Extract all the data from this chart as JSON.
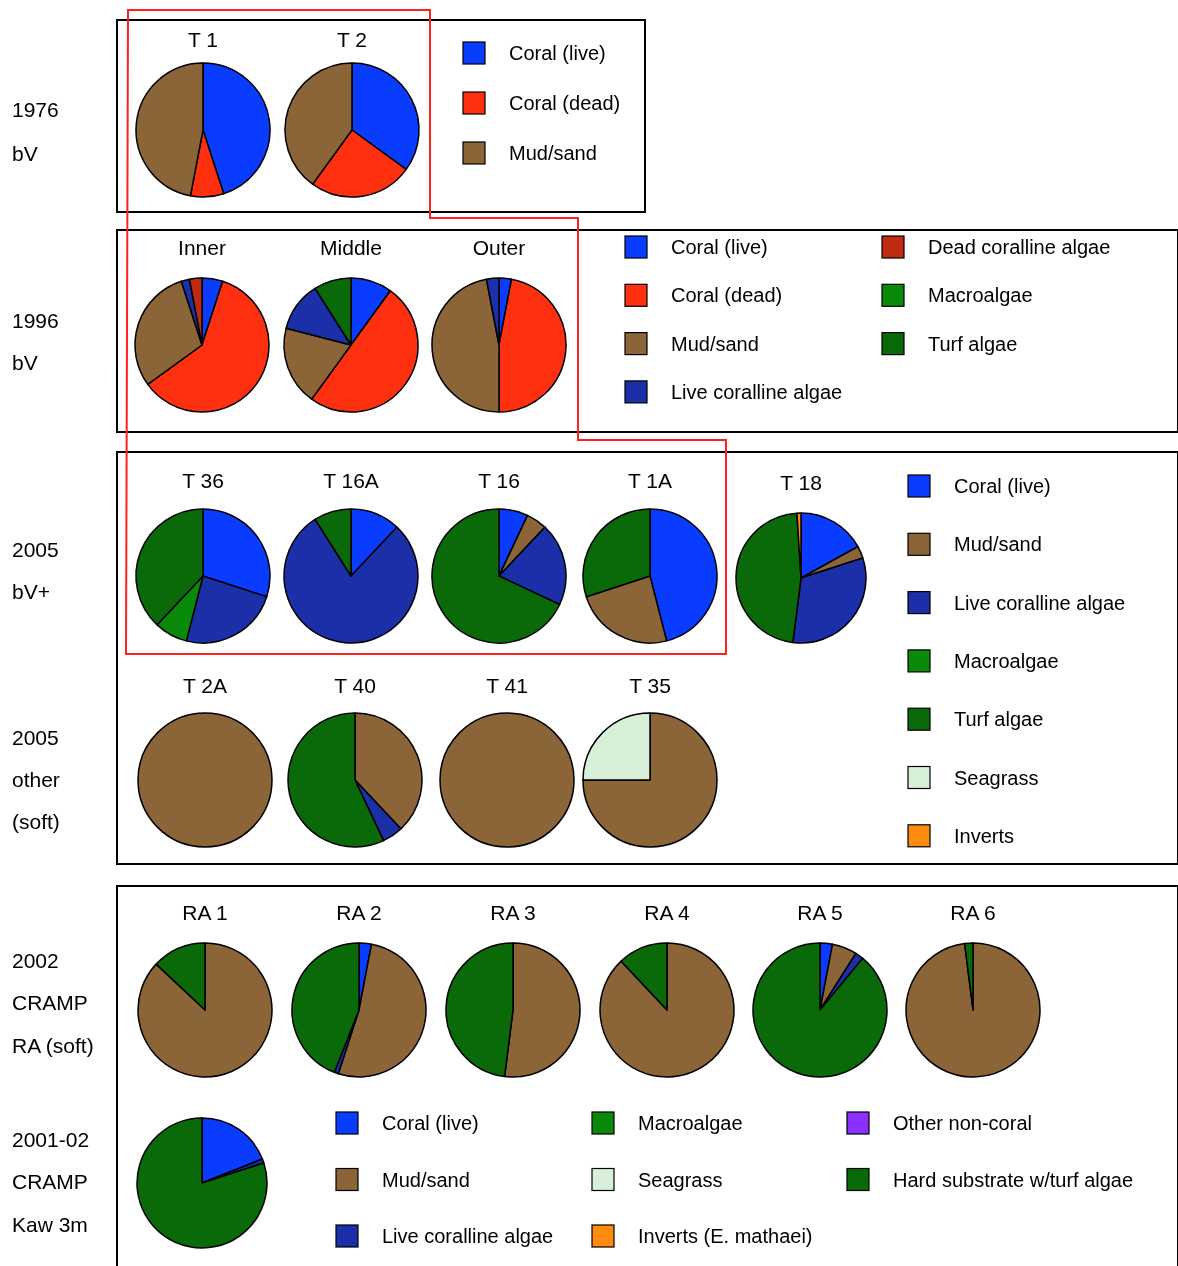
{
  "chart_data": [
    {
      "type": "pie",
      "categories": [
        "Coral (live)",
        "Coral (dead)",
        "Mud/sand"
      ],
      "colors": [
        "#0a3cff",
        "#ff3010",
        "#8b6438"
      ],
      "legend": "right",
      "annotations": [
        "1976",
        "bV"
      ],
      "series": [
        {
          "name": "T 1",
          "values": [
            45,
            8,
            47
          ]
        },
        {
          "name": "T 2",
          "values": [
            35,
            25,
            40
          ]
        }
      ]
    },
    {
      "type": "pie",
      "categories": [
        "Coral (live)",
        "Coral (dead)",
        "Mud/sand",
        "Live coralline algae",
        "Dead coralline algae",
        "Macroalgae",
        "Turf algae"
      ],
      "colors": [
        "#0a3cff",
        "#ff3010",
        "#8b6438",
        "#1a2fa8",
        "#c02a10",
        "#0a8a0a",
        "#0a6a0a"
      ],
      "legend": "right",
      "annotations": [
        "1996",
        "bV"
      ],
      "series": [
        {
          "name": "Inner",
          "values": [
            5,
            60,
            30,
            2,
            3,
            0,
            0
          ]
        },
        {
          "name": "Middle",
          "values": [
            10,
            50,
            19,
            12,
            0,
            0,
            9
          ]
        },
        {
          "name": "Outer",
          "values": [
            3,
            47,
            47,
            3,
            0,
            0,
            0
          ]
        }
      ]
    },
    {
      "type": "pie",
      "categories": [
        "Coral (live)",
        "Mud/sand",
        "Live coralline algae",
        "Macroalgae",
        "Turf algae",
        "Seagrass",
        "Inverts"
      ],
      "colors": [
        "#0a3cff",
        "#8b6438",
        "#1a2fa8",
        "#0a8a0a",
        "#0a6a0a",
        "#d8f0d8",
        "#ff8a10"
      ],
      "legend": "right",
      "annotations": [
        "2005",
        "bV+",
        "2005",
        "other",
        "(soft)"
      ],
      "series": [
        {
          "name": "T 36",
          "values": [
            30,
            0,
            24,
            8,
            38,
            0,
            0
          ]
        },
        {
          "name": "T 16A",
          "values": [
            12,
            0,
            79,
            0,
            9,
            0,
            0
          ]
        },
        {
          "name": "T 16",
          "values": [
            7,
            5,
            20,
            0,
            68,
            0,
            0
          ]
        },
        {
          "name": "T 1A",
          "values": [
            46,
            24,
            0,
            0,
            30,
            0,
            0
          ]
        },
        {
          "name": "T 18",
          "values": [
            17,
            3,
            32,
            0,
            47,
            0,
            1
          ]
        },
        {
          "name": "T 2A",
          "values": [
            0,
            100,
            0,
            0,
            0,
            0,
            0
          ]
        },
        {
          "name": "T 40",
          "values": [
            0,
            38,
            5,
            0,
            57,
            0,
            0
          ]
        },
        {
          "name": "T 41",
          "values": [
            0,
            100,
            0,
            0,
            0,
            0,
            0
          ]
        },
        {
          "name": "T 35",
          "values": [
            0,
            75,
            0,
            0,
            0,
            25,
            0
          ]
        }
      ]
    },
    {
      "type": "pie",
      "categories": [
        "Coral (live)",
        "Mud/sand",
        "Live coralline algae",
        "Macroalgae",
        "Seagrass",
        "Inverts (E. mathaei)",
        "Other non-coral",
        "Hard substrate w/turf algae"
      ],
      "colors": [
        "#0a3cff",
        "#8b6438",
        "#1a2fa8",
        "#0a8a0a",
        "#d8f0d8",
        "#ff8a10",
        "#8a30ff",
        "#0a6a0a"
      ],
      "legend": "bottom right",
      "annotations": [
        "2002",
        "CRAMP",
        "RA (soft)",
        "2001-02",
        "CRAMP",
        "Kaw 3m"
      ],
      "series": [
        {
          "name": "RA 1",
          "values": [
            0,
            87,
            0,
            0,
            0,
            0,
            0,
            13
          ]
        },
        {
          "name": "RA 2",
          "values": [
            3,
            52,
            1,
            0,
            0,
            0,
            0,
            44
          ]
        },
        {
          "name": "RA 3",
          "values": [
            0,
            52,
            0,
            0,
            0,
            0,
            0,
            48
          ]
        },
        {
          "name": "RA 4",
          "values": [
            0,
            88,
            0,
            0,
            0,
            0,
            0,
            12
          ]
        },
        {
          "name": "RA 5",
          "values": [
            3,
            6,
            2,
            0,
            0,
            0,
            0,
            89
          ]
        },
        {
          "name": "RA 6",
          "values": [
            0,
            98,
            0,
            0,
            0,
            0,
            0,
            2
          ]
        },
        {
          "values": [
            19,
            0,
            1,
            0,
            0,
            0,
            0,
            80
          ]
        }
      ]
    }
  ]
}
